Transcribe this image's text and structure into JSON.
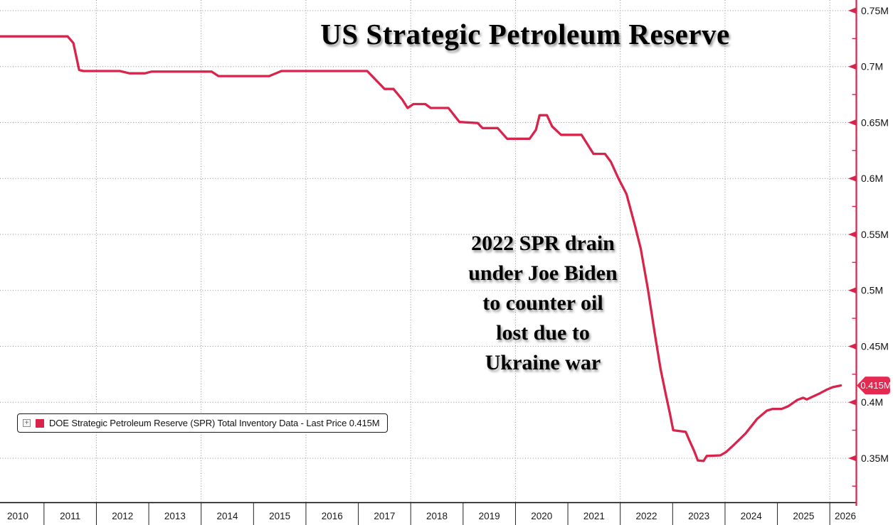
{
  "title": "US Strategic Petroleum Reserve",
  "annotation": {
    "lines": [
      "2022 SPR drain",
      "under Joe Biden",
      "to counter oil",
      "lost due to",
      "Ukraine war"
    ]
  },
  "legend": {
    "expand_glyph": "+",
    "label": "DOE Strategic Petroleum Reserve (SPR) Total Inventory Data - Last Price 0.415M"
  },
  "badge": {
    "text": "0.415M",
    "value": 0.415
  },
  "colors": {
    "line": "#d8234b",
    "axis_red": "#d8234b",
    "badge_fill": "#e42a50",
    "grid": "#8f8f8f",
    "tick_text": "#111111",
    "year_text": "#1a1a1a",
    "badge_text": "#ffffff",
    "x_axis_black": "#000000"
  },
  "chart_data": {
    "type": "line",
    "title": "US Strategic Petroleum Reserve",
    "grid": "dotted",
    "legend_position": "bottom-left",
    "series": [
      {
        "name": "DOE Strategic Petroleum Reserve (SPR) Total Inventory Data",
        "color": "#d8234b",
        "last_price_label": "0.415M",
        "unit": "M barrels (millions, shown as M)",
        "points": [
          [
            2010.16,
            0.727
          ],
          [
            2011.45,
            0.727
          ],
          [
            2011.56,
            0.721
          ],
          [
            2011.67,
            0.697
          ],
          [
            2011.75,
            0.696
          ],
          [
            2012.45,
            0.696
          ],
          [
            2012.63,
            0.694
          ],
          [
            2012.93,
            0.694
          ],
          [
            2013.05,
            0.6955
          ],
          [
            2014.2,
            0.6955
          ],
          [
            2014.33,
            0.6915
          ],
          [
            2015.3,
            0.6915
          ],
          [
            2015.53,
            0.696
          ],
          [
            2017.17,
            0.696
          ],
          [
            2017.5,
            0.68
          ],
          [
            2017.67,
            0.68
          ],
          [
            2017.84,
            0.6705
          ],
          [
            2017.94,
            0.663
          ],
          [
            2018.05,
            0.6665
          ],
          [
            2018.28,
            0.6665
          ],
          [
            2018.38,
            0.663
          ],
          [
            2018.72,
            0.663
          ],
          [
            2018.93,
            0.6505
          ],
          [
            2019.28,
            0.6495
          ],
          [
            2019.37,
            0.645
          ],
          [
            2019.66,
            0.645
          ],
          [
            2019.84,
            0.6355
          ],
          [
            2020.27,
            0.6355
          ],
          [
            2020.39,
            0.6435
          ],
          [
            2020.46,
            0.6565
          ],
          [
            2020.6,
            0.6565
          ],
          [
            2020.7,
            0.6465
          ],
          [
            2020.87,
            0.639
          ],
          [
            2021.26,
            0.639
          ],
          [
            2021.49,
            0.622
          ],
          [
            2021.71,
            0.622
          ],
          [
            2021.82,
            0.615
          ],
          [
            2021.96,
            0.6005
          ],
          [
            2022.12,
            0.586
          ],
          [
            2022.28,
            0.558
          ],
          [
            2022.39,
            0.5375
          ],
          [
            2022.53,
            0.5005
          ],
          [
            2022.66,
            0.461
          ],
          [
            2022.77,
            0.4295
          ],
          [
            2022.87,
            0.407
          ],
          [
            2022.95,
            0.3895
          ],
          [
            2023.01,
            0.375
          ],
          [
            2023.25,
            0.3735
          ],
          [
            2023.31,
            0.367
          ],
          [
            2023.41,
            0.3565
          ],
          [
            2023.48,
            0.348
          ],
          [
            2023.59,
            0.3475
          ],
          [
            2023.65,
            0.352
          ],
          [
            2023.91,
            0.3525
          ],
          [
            2024.02,
            0.3555
          ],
          [
            2024.16,
            0.3615
          ],
          [
            2024.39,
            0.372
          ],
          [
            2024.61,
            0.385
          ],
          [
            2024.8,
            0.3925
          ],
          [
            2024.91,
            0.394
          ],
          [
            2025.08,
            0.394
          ],
          [
            2025.21,
            0.3965
          ],
          [
            2025.38,
            0.402
          ],
          [
            2025.49,
            0.404
          ],
          [
            2025.56,
            0.4025
          ],
          [
            2025.65,
            0.4045
          ],
          [
            2025.79,
            0.4075
          ],
          [
            2025.93,
            0.411
          ],
          [
            2026.06,
            0.4135
          ],
          [
            2026.21,
            0.415
          ]
        ]
      }
    ],
    "x_axis": {
      "range": [
        2010.16,
        2026.5
      ],
      "year_labels": [
        2010,
        2011,
        2012,
        2013,
        2014,
        2015,
        2016,
        2017,
        2018,
        2019,
        2020,
        2021,
        2022,
        2023,
        2024,
        2025,
        2026
      ],
      "gridline_years": [
        2012,
        2014,
        2016,
        2018,
        2020,
        2022,
        2024,
        2026
      ]
    },
    "y_axis": {
      "side": "right",
      "range": [
        0.3106,
        0.7595
      ],
      "major_ticks": [
        {
          "value": 0.75,
          "label": "0.75M"
        },
        {
          "value": 0.7,
          "label": "0.7M"
        },
        {
          "value": 0.65,
          "label": "0.65M"
        },
        {
          "value": 0.6,
          "label": "0.6M"
        },
        {
          "value": 0.55,
          "label": "0.55M"
        },
        {
          "value": 0.5,
          "label": "0.5M"
        },
        {
          "value": 0.45,
          "label": "0.45M"
        },
        {
          "value": 0.4,
          "label": "0.4M"
        },
        {
          "value": 0.35,
          "label": "0.35M"
        }
      ],
      "minor_ticks": [
        0.725,
        0.675,
        0.625,
        0.575,
        0.525,
        0.475,
        0.425,
        0.375,
        0.325
      ]
    }
  }
}
